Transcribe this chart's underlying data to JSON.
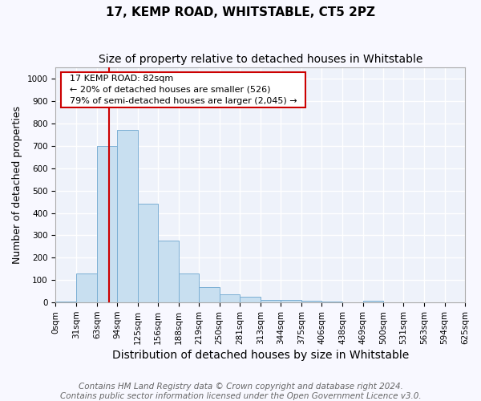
{
  "title": "17, KEMP ROAD, WHITSTABLE, CT5 2PZ",
  "subtitle": "Size of property relative to detached houses in Whitstable",
  "xlabel": "Distribution of detached houses by size in Whitstable",
  "ylabel": "Number of detached properties",
  "footer_line1": "Contains HM Land Registry data © Crown copyright and database right 2024.",
  "footer_line2": "Contains public sector information licensed under the Open Government Licence v3.0.",
  "bin_edges": [
    0,
    31,
    63,
    94,
    125,
    156,
    188,
    219,
    250,
    281,
    313,
    344,
    375,
    406,
    438,
    469,
    500,
    531,
    563,
    594,
    625
  ],
  "bar_heights": [
    5,
    128,
    700,
    770,
    440,
    275,
    130,
    70,
    38,
    25,
    13,
    13,
    8,
    5,
    2,
    8,
    2,
    0,
    0,
    0
  ],
  "bar_color": "#c8dff0",
  "bar_edgecolor": "#7bafd4",
  "red_line_x": 82,
  "red_line_color": "#cc0000",
  "annotation_text": "  17 KEMP ROAD: 82sqm  \n  ← 20% of detached houses are smaller (526)  \n  79% of semi-detached houses are larger (2,045) →  ",
  "annotation_box_color": "#ffffff",
  "annotation_box_edgecolor": "#cc0000",
  "ylim": [
    0,
    1050
  ],
  "yticks": [
    0,
    100,
    200,
    300,
    400,
    500,
    600,
    700,
    800,
    900,
    1000
  ],
  "bg_color": "#eef2fa",
  "grid_color": "#ffffff",
  "title_fontsize": 11,
  "subtitle_fontsize": 10,
  "xlabel_fontsize": 10,
  "ylabel_fontsize": 9,
  "tick_fontsize": 7.5,
  "annotation_fontsize": 8,
  "footer_fontsize": 7.5
}
